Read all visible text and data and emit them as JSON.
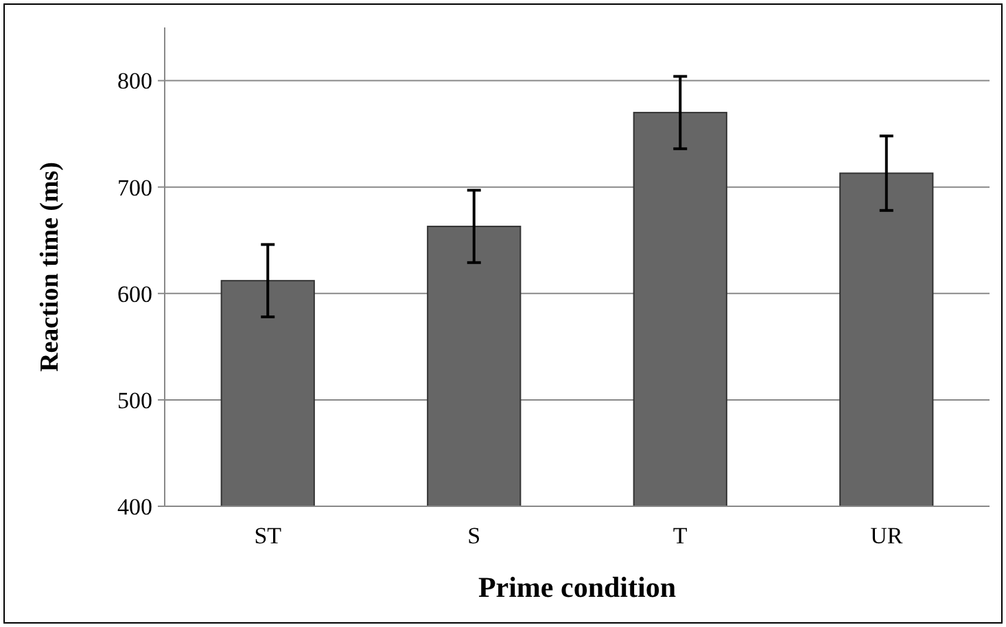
{
  "chart_data": {
    "type": "bar",
    "xlabel": "Prime condition",
    "ylabel": "Reaction time (ms)",
    "categories": [
      "ST",
      "S",
      "T",
      "UR"
    ],
    "values": [
      612,
      663,
      770,
      713
    ],
    "errors": [
      34,
      34,
      34,
      35
    ],
    "color": "#666666",
    "ylim": [
      400,
      850
    ],
    "yticks": [
      400,
      500,
      600,
      700,
      800
    ],
    "grid": "y"
  }
}
